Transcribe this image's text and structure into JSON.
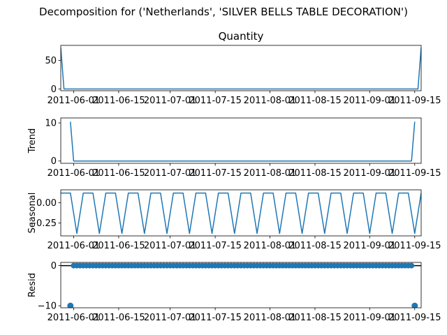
{
  "chart_data": {
    "type": "line",
    "suptitle": "Decomposition for ('Netherlands', 'SILVER BELLS TABLE DECORATION')",
    "x_range": [
      "2011-05-28",
      "2011-09-17"
    ],
    "x_ticks": [
      "2011-06-01",
      "2011-06-15",
      "2011-07-01",
      "2011-07-15",
      "2011-08-01",
      "2011-08-15",
      "2011-09-01",
      "2011-09-15"
    ],
    "series_color": "#1f77b4",
    "panels": [
      {
        "key": "observed",
        "title": "Quantity",
        "ylabel": "",
        "ylim": [
          -3,
          76
        ],
        "yticks": [
          0,
          50
        ],
        "style": "line",
        "points": [
          [
            "2011-05-28",
            72
          ],
          [
            "2011-05-29",
            0
          ],
          [
            "2011-09-16",
            0
          ],
          [
            "2011-09-17",
            72
          ]
        ]
      },
      {
        "key": "trend",
        "title": "",
        "ylabel": "Trend",
        "ylim": [
          -0.6,
          11.3
        ],
        "yticks": [
          0,
          10
        ],
        "style": "line",
        "points": [
          [
            "2011-05-31",
            10.3
          ],
          [
            "2011-06-01",
            0
          ],
          [
            "2011-09-14",
            0
          ],
          [
            "2011-09-15",
            10.3
          ]
        ]
      },
      {
        "key": "seasonal",
        "title": "",
        "ylabel": "Seasonal",
        "ylim": [
          -0.41,
          0.16
        ],
        "yticks": [
          -0.25,
          0.0
        ],
        "tick_labels": [
          "−0.25",
          "0.00"
        ],
        "style": "line",
        "weekly_pattern": [
          0.12,
          0.12,
          0.12,
          0.12,
          -0.13,
          -0.38,
          -0.13
        ],
        "pattern_start": "2011-05-28"
      },
      {
        "key": "resid",
        "title": "",
        "ylabel": "Resid",
        "ylim": [
          -10.5,
          0.8
        ],
        "yticks": [
          -10,
          0
        ],
        "tick_labels": [
          "−10",
          "0"
        ],
        "style": "scatter",
        "zero_line": true,
        "points": [
          [
            "2011-05-31",
            -10
          ],
          [
            "2011-09-15",
            -10
          ]
        ],
        "zero_range": [
          "2011-06-01",
          "2011-09-14"
        ]
      }
    ]
  }
}
